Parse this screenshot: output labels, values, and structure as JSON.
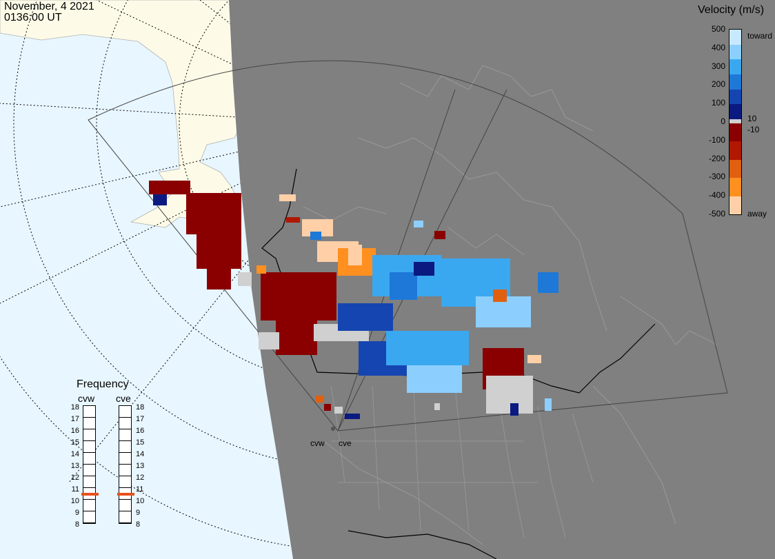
{
  "timestamp": {
    "date": "November, 4 2021",
    "time": "0136:00 UT"
  },
  "colorbar": {
    "title": "Velocity (m/s)",
    "ticks": [
      "500",
      "400",
      "300",
      "200",
      "100",
      "0",
      "-100",
      "-200",
      "-300",
      "-400",
      "-500"
    ],
    "small_labels": [
      "10",
      "-10"
    ],
    "toward_label": "toward",
    "away_label": "away",
    "colors": [
      "#c8e8ff",
      "#8ccfff",
      "#3aa8f0",
      "#1e78d8",
      "#1545b0",
      "#0a1a80",
      "#d0d0d0",
      "#8a0000",
      "#b01800",
      "#e06010",
      "#ff9020",
      "#ffd0a8"
    ]
  },
  "frequency": {
    "title": "Frequency",
    "radars": [
      {
        "name": "cvw",
        "selected": 11
      },
      {
        "name": "cve",
        "selected": 11
      }
    ],
    "levels": [
      "18",
      "17",
      "16",
      "15",
      "14",
      "13",
      "12",
      "11",
      "10",
      "9",
      "8"
    ]
  },
  "radar_sites": [
    "cvw",
    "cve"
  ],
  "map_colors": {
    "ocean": "#e8f6ff",
    "night": "#808080",
    "land_day": "#fdfbe8",
    "land_night_border": "#9a9a9a"
  }
}
